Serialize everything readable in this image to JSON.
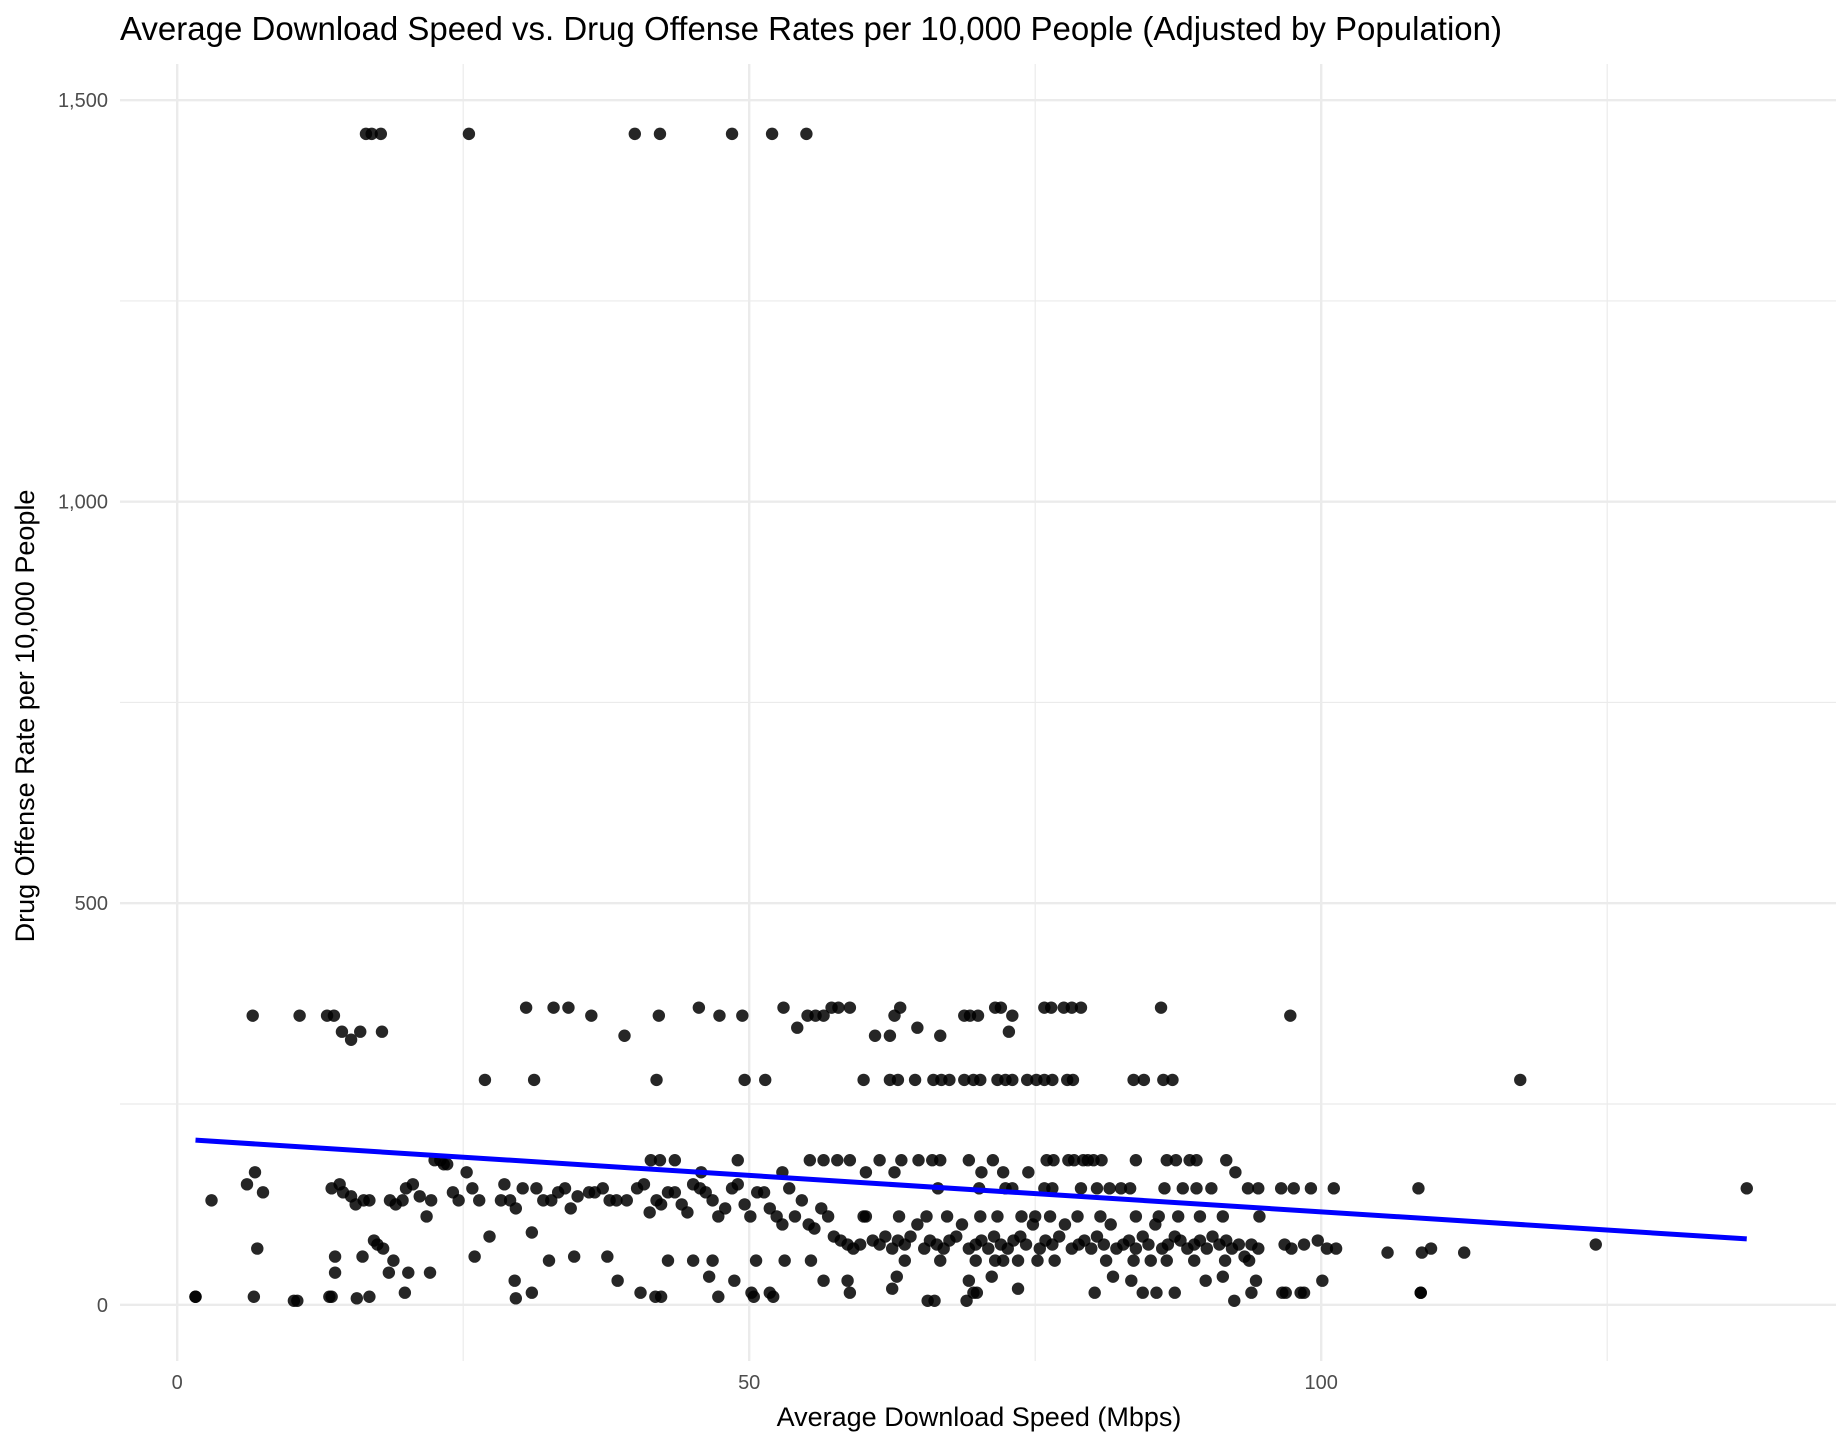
{
  "chart_data": {
    "type": "scatter",
    "title": "Average Download Speed vs. Drug Offense Rates per 10,000 People (Adjusted by Population)",
    "xlabel": "Average Download Speed (Mbps)",
    "ylabel": "Drug Offense Rate per 10,000 People",
    "xlim": [
      -5,
      145
    ],
    "ylim": [
      -70,
      1545
    ],
    "x_ticks": [
      0,
      50,
      100
    ],
    "x_tick_labels": [
      "0",
      "50",
      "100"
    ],
    "y_ticks": [
      0,
      500,
      1000,
      1500
    ],
    "y_tick_labels": [
      "0",
      "500",
      "1,000",
      "1,500"
    ],
    "grid": true,
    "point_color": "#000000",
    "trend_color": "#0000ff",
    "trend_line": {
      "x": [
        1.6,
        137.2
      ],
      "y": [
        205,
        82
      ]
    },
    "points": [
      [
        16.5,
        1458
      ],
      [
        17,
        1458
      ],
      [
        17.8,
        1458
      ],
      [
        25.5,
        1458
      ],
      [
        40,
        1458
      ],
      [
        42.2,
        1458
      ],
      [
        48.5,
        1458
      ],
      [
        52,
        1458
      ],
      [
        55,
        1458
      ],
      [
        6.6,
        360
      ],
      [
        10.7,
        360
      ],
      [
        13.1,
        360
      ],
      [
        13.7,
        360
      ],
      [
        14.4,
        340
      ],
      [
        15.2,
        330
      ],
      [
        16,
        340
      ],
      [
        17.9,
        340
      ],
      [
        30.5,
        370
      ],
      [
        32.9,
        370
      ],
      [
        34.2,
        370
      ],
      [
        36.2,
        360
      ],
      [
        39.1,
        335
      ],
      [
        42.1,
        360
      ],
      [
        45.6,
        370
      ],
      [
        47.4,
        360
      ],
      [
        49.4,
        360
      ],
      [
        53,
        370
      ],
      [
        54.2,
        345
      ],
      [
        55.1,
        360
      ],
      [
        55.8,
        360
      ],
      [
        56.5,
        360
      ],
      [
        57.2,
        370
      ],
      [
        57.8,
        370
      ],
      [
        58.8,
        370
      ],
      [
        61,
        335
      ],
      [
        62.3,
        335
      ],
      [
        62.7,
        360
      ],
      [
        63.2,
        370
      ],
      [
        64.7,
        345
      ],
      [
        66.7,
        335
      ],
      [
        68.8,
        360
      ],
      [
        69.3,
        360
      ],
      [
        70,
        360
      ],
      [
        71.5,
        370
      ],
      [
        72,
        370
      ],
      [
        73,
        360
      ],
      [
        72.7,
        340
      ],
      [
        75.8,
        370
      ],
      [
        76.4,
        370
      ],
      [
        77.5,
        370
      ],
      [
        78.2,
        370
      ],
      [
        79,
        370
      ],
      [
        86,
        370
      ],
      [
        97.3,
        360
      ],
      [
        26.9,
        280
      ],
      [
        31.2,
        280
      ],
      [
        41.9,
        280
      ],
      [
        49.6,
        280
      ],
      [
        51.4,
        280
      ],
      [
        60,
        280
      ],
      [
        62.3,
        280
      ],
      [
        63,
        280
      ],
      [
        64.5,
        280
      ],
      [
        66.1,
        280
      ],
      [
        66.8,
        280
      ],
      [
        67.5,
        280
      ],
      [
        68.8,
        280
      ],
      [
        69.6,
        280
      ],
      [
        70.2,
        280
      ],
      [
        71.7,
        280
      ],
      [
        72.4,
        280
      ],
      [
        73,
        280
      ],
      [
        74.3,
        280
      ],
      [
        75.1,
        280
      ],
      [
        75.8,
        280
      ],
      [
        76.5,
        280
      ],
      [
        77.8,
        280
      ],
      [
        78.3,
        280
      ],
      [
        83.6,
        280
      ],
      [
        84.5,
        280
      ],
      [
        86.2,
        280
      ],
      [
        87,
        280
      ],
      [
        117.4,
        280
      ],
      [
        1.6,
        10
      ],
      [
        3,
        130
      ],
      [
        6.1,
        150
      ],
      [
        6.8,
        165
      ],
      [
        7,
        70
      ],
      [
        7.5,
        140
      ],
      [
        10.5,
        5
      ],
      [
        13.3,
        10
      ],
      [
        13.5,
        145
      ],
      [
        14.2,
        150
      ],
      [
        14.5,
        140
      ],
      [
        15.2,
        135
      ],
      [
        15.6,
        125
      ],
      [
        16.3,
        130
      ],
      [
        16.8,
        130
      ],
      [
        17.2,
        80
      ],
      [
        17.5,
        75
      ],
      [
        18,
        70
      ],
      [
        18.6,
        130
      ],
      [
        19.1,
        125
      ],
      [
        19.7,
        130
      ],
      [
        20,
        145
      ],
      [
        20.6,
        150
      ],
      [
        21.2,
        135
      ],
      [
        21.8,
        110
      ],
      [
        22.2,
        130
      ],
      [
        23.3,
        175
      ],
      [
        23.6,
        175
      ],
      [
        24.1,
        140
      ],
      [
        24.6,
        130
      ],
      [
        25.3,
        165
      ],
      [
        25.8,
        145
      ],
      [
        26.4,
        130
      ],
      [
        27.3,
        85
      ],
      [
        28.3,
        130
      ],
      [
        28.6,
        150
      ],
      [
        29.1,
        130
      ],
      [
        29.6,
        120
      ],
      [
        30.2,
        145
      ],
      [
        31,
        90
      ],
      [
        31.4,
        145
      ],
      [
        32,
        130
      ],
      [
        32.7,
        130
      ],
      [
        33.3,
        140
      ],
      [
        33.9,
        145
      ],
      [
        34.4,
        120
      ],
      [
        35,
        135
      ],
      [
        36,
        140
      ],
      [
        36.5,
        140
      ],
      [
        37.2,
        145
      ],
      [
        37.8,
        130
      ],
      [
        38.4,
        130
      ],
      [
        39.3,
        130
      ],
      [
        40.2,
        145
      ],
      [
        40.8,
        150
      ],
      [
        41.3,
        115
      ],
      [
        41.9,
        130
      ],
      [
        42.3,
        125
      ],
      [
        42.9,
        140
      ],
      [
        43.5,
        140
      ],
      [
        44.1,
        125
      ],
      [
        44.6,
        115
      ],
      [
        45.1,
        150
      ],
      [
        45.7,
        145
      ],
      [
        46.2,
        140
      ],
      [
        46.8,
        130
      ],
      [
        47.3,
        110
      ],
      [
        47.9,
        120
      ],
      [
        48.5,
        145
      ],
      [
        49,
        150
      ],
      [
        49.6,
        125
      ],
      [
        50.1,
        110
      ],
      [
        50.7,
        140
      ],
      [
        51.3,
        140
      ],
      [
        51.8,
        120
      ],
      [
        52.4,
        110
      ],
      [
        52.9,
        100
      ],
      [
        53.5,
        145
      ],
      [
        54,
        110
      ],
      [
        54.6,
        130
      ],
      [
        55.2,
        100
      ],
      [
        55.7,
        95
      ],
      [
        56.3,
        120
      ],
      [
        56.9,
        110
      ],
      [
        57.4,
        85
      ],
      [
        58,
        80
      ],
      [
        58.6,
        75
      ],
      [
        59.1,
        70
      ],
      [
        59.7,
        75
      ],
      [
        60.2,
        110
      ],
      [
        60.8,
        80
      ],
      [
        61.4,
        75
      ],
      [
        61.9,
        85
      ],
      [
        62.5,
        70
      ],
      [
        63,
        80
      ],
      [
        63.6,
        75
      ],
      [
        64.1,
        85
      ],
      [
        64.7,
        100
      ],
      [
        65.3,
        70
      ],
      [
        65.8,
        80
      ],
      [
        66.4,
        75
      ],
      [
        67,
        70
      ],
      [
        67.5,
        80
      ],
      [
        68.1,
        85
      ],
      [
        68.6,
        100
      ],
      [
        69.2,
        70
      ],
      [
        69.8,
        75
      ],
      [
        70.3,
        80
      ],
      [
        70.9,
        70
      ],
      [
        71.4,
        85
      ],
      [
        72,
        75
      ],
      [
        72.6,
        70
      ],
      [
        73.1,
        80
      ],
      [
        73.7,
        85
      ],
      [
        74.2,
        75
      ],
      [
        74.8,
        100
      ],
      [
        75.4,
        70
      ],
      [
        75.9,
        80
      ],
      [
        76.5,
        75
      ],
      [
        77.1,
        85
      ],
      [
        77.6,
        100
      ],
      [
        78.2,
        70
      ],
      [
        78.8,
        75
      ],
      [
        79.3,
        80
      ],
      [
        79.9,
        70
      ],
      [
        80.4,
        85
      ],
      [
        81,
        75
      ],
      [
        81.6,
        100
      ],
      [
        82.1,
        70
      ],
      [
        82.7,
        75
      ],
      [
        83.2,
        80
      ],
      [
        83.8,
        70
      ],
      [
        84.4,
        85
      ],
      [
        84.9,
        75
      ],
      [
        85.5,
        100
      ],
      [
        86.1,
        70
      ],
      [
        86.6,
        75
      ],
      [
        87.2,
        85
      ],
      [
        87.7,
        80
      ],
      [
        88.3,
        70
      ],
      [
        88.9,
        75
      ],
      [
        89.4,
        80
      ],
      [
        90,
        70
      ],
      [
        90.5,
        85
      ],
      [
        91.1,
        75
      ],
      [
        91.7,
        80
      ],
      [
        92.2,
        70
      ],
      [
        92.8,
        75
      ],
      [
        93.3,
        60
      ],
      [
        93.9,
        75
      ],
      [
        94.5,
        70
      ],
      [
        96.8,
        75
      ],
      [
        97.4,
        70
      ],
      [
        98.5,
        75
      ],
      [
        99.7,
        80
      ],
      [
        100.5,
        70
      ],
      [
        101.3,
        70
      ],
      [
        18.5,
        40
      ],
      [
        20.2,
        40
      ],
      [
        22.1,
        40
      ],
      [
        13.8,
        40
      ],
      [
        29.5,
        30
      ],
      [
        38.5,
        30
      ],
      [
        40.5,
        15
      ],
      [
        42.3,
        10
      ],
      [
        46.5,
        35
      ],
      [
        48.7,
        30
      ],
      [
        50.2,
        15
      ],
      [
        51.8,
        15
      ],
      [
        56.5,
        30
      ],
      [
        58.6,
        30
      ],
      [
        58.8,
        15
      ],
      [
        62.9,
        35
      ],
      [
        66.2,
        5
      ],
      [
        69.2,
        30
      ],
      [
        69.9,
        15
      ],
      [
        71.2,
        35
      ],
      [
        73.5,
        20
      ],
      [
        80.2,
        15
      ],
      [
        81.8,
        35
      ],
      [
        83.4,
        30
      ],
      [
        84.4,
        15
      ],
      [
        85.6,
        15
      ],
      [
        89.9,
        30
      ],
      [
        91.4,
        35
      ],
      [
        93.9,
        15
      ],
      [
        94.3,
        30
      ],
      [
        96.9,
        15
      ],
      [
        98.5,
        15
      ],
      [
        100.1,
        30
      ],
      [
        108.7,
        15
      ],
      [
        22.5,
        180
      ],
      [
        23,
        180
      ],
      [
        41.4,
        180
      ],
      [
        42.2,
        180
      ],
      [
        43.5,
        180
      ],
      [
        45.8,
        165
      ],
      [
        49,
        180
      ],
      [
        52.9,
        165
      ],
      [
        55.3,
        180
      ],
      [
        56.5,
        180
      ],
      [
        57.7,
        180
      ],
      [
        58.8,
        180
      ],
      [
        60.2,
        165
      ],
      [
        61.4,
        180
      ],
      [
        62.7,
        165
      ],
      [
        63.3,
        180
      ],
      [
        64.8,
        180
      ],
      [
        66,
        180
      ],
      [
        66.7,
        180
      ],
      [
        69.2,
        180
      ],
      [
        70.3,
        165
      ],
      [
        71.3,
        180
      ],
      [
        72.2,
        165
      ],
      [
        74.4,
        165
      ],
      [
        76,
        180
      ],
      [
        76.6,
        180
      ],
      [
        77.9,
        180
      ],
      [
        78.4,
        180
      ],
      [
        79.2,
        180
      ],
      [
        79.6,
        180
      ],
      [
        80.1,
        180
      ],
      [
        80.8,
        180
      ],
      [
        83.8,
        180
      ],
      [
        86.5,
        180
      ],
      [
        87.3,
        180
      ],
      [
        88.5,
        180
      ],
      [
        89.1,
        180
      ],
      [
        91.7,
        180
      ],
      [
        92.5,
        165
      ],
      [
        66.5,
        145
      ],
      [
        70.1,
        145
      ],
      [
        72.4,
        145
      ],
      [
        73,
        145
      ],
      [
        75.8,
        145
      ],
      [
        76.5,
        145
      ],
      [
        79,
        145
      ],
      [
        80.4,
        145
      ],
      [
        81.5,
        145
      ],
      [
        82.5,
        145
      ],
      [
        83.3,
        145
      ],
      [
        86.3,
        145
      ],
      [
        87.9,
        145
      ],
      [
        89.1,
        145
      ],
      [
        90.4,
        145
      ],
      [
        93.6,
        145
      ],
      [
        94.5,
        145
      ],
      [
        96.5,
        145
      ],
      [
        97.6,
        145
      ],
      [
        99.1,
        145
      ],
      [
        101.1,
        145
      ],
      [
        108.5,
        145
      ],
      [
        137.2,
        145
      ],
      [
        60,
        110
      ],
      [
        63.1,
        110
      ],
      [
        65.5,
        110
      ],
      [
        67.3,
        110
      ],
      [
        70.2,
        110
      ],
      [
        71.7,
        110
      ],
      [
        73.8,
        110
      ],
      [
        75,
        110
      ],
      [
        76.3,
        110
      ],
      [
        78.7,
        110
      ],
      [
        80.7,
        110
      ],
      [
        83.8,
        110
      ],
      [
        85.8,
        110
      ],
      [
        87.5,
        110
      ],
      [
        89.4,
        110
      ],
      [
        91.4,
        110
      ],
      [
        94.6,
        110
      ],
      [
        13.8,
        60
      ],
      [
        16.2,
        60
      ],
      [
        18.9,
        55
      ],
      [
        26,
        60
      ],
      [
        32.5,
        55
      ],
      [
        34.7,
        60
      ],
      [
        37.6,
        60
      ],
      [
        42.9,
        55
      ],
      [
        45.1,
        55
      ],
      [
        46.8,
        55
      ],
      [
        50.6,
        55
      ],
      [
        53.1,
        55
      ],
      [
        55.4,
        55
      ],
      [
        63.6,
        55
      ],
      [
        66.7,
        55
      ],
      [
        69.8,
        55
      ],
      [
        71.5,
        55
      ],
      [
        72.2,
        55
      ],
      [
        73.5,
        55
      ],
      [
        75.2,
        55
      ],
      [
        76.7,
        55
      ],
      [
        81.2,
        55
      ],
      [
        83.6,
        55
      ],
      [
        85.1,
        55
      ],
      [
        86.5,
        55
      ],
      [
        88.9,
        55
      ],
      [
        91.6,
        55
      ],
      [
        93.7,
        55
      ],
      [
        105.8,
        65
      ],
      [
        108.8,
        65
      ],
      [
        109.6,
        70
      ],
      [
        112.5,
        65
      ],
      [
        124,
        75
      ],
      [
        1.6,
        10
      ],
      [
        6.7,
        10
      ],
      [
        10.2,
        5
      ],
      [
        13.5,
        10
      ],
      [
        15.7,
        8
      ],
      [
        16.8,
        10
      ],
      [
        19.9,
        15
      ],
      [
        29.6,
        8
      ],
      [
        31,
        15
      ],
      [
        41.8,
        10
      ],
      [
        47.3,
        10
      ],
      [
        50.4,
        10
      ],
      [
        52.1,
        10
      ],
      [
        62.5,
        20
      ],
      [
        65.6,
        5
      ],
      [
        69,
        5
      ],
      [
        69.6,
        15
      ],
      [
        87.2,
        15
      ],
      [
        92.4,
        5
      ],
      [
        96.6,
        15
      ],
      [
        98.2,
        15
      ],
      [
        108.7,
        15
      ]
    ]
  }
}
